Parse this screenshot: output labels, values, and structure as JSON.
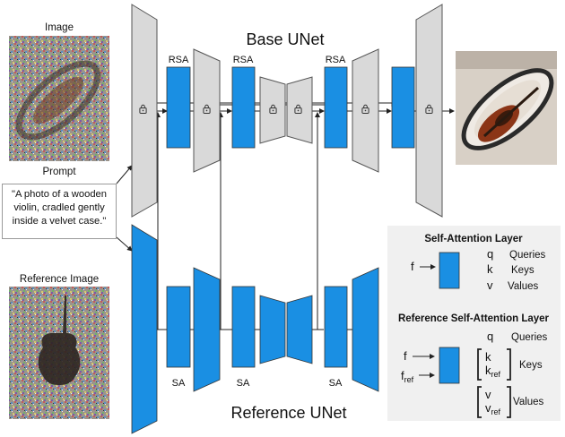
{
  "labels": {
    "image": "Image",
    "prompt": "Prompt",
    "reference_image": "Reference Image",
    "base_unet": "Base UNet",
    "reference_unet": "Reference UNet",
    "rsa": "RSA",
    "sa": "SA"
  },
  "prompt_text": "\"A photo of a wooden violin, cradled gently inside a velvet case.\"",
  "legend": {
    "sa_title": "Self-Attention Layer",
    "ref_title": "Reference Self-Attention Layer",
    "f": "f",
    "f_ref_base": "f",
    "f_ref_sub": "ref",
    "q": "q",
    "k": "k",
    "v": "v",
    "k_ref_base": "k",
    "v_ref_base": "v",
    "ref_sub": "ref",
    "queries": "Queries",
    "keys": "Keys",
    "values": "Values"
  },
  "colors": {
    "blue": "#1a8fe3",
    "gray": "#d9d9d9",
    "stroke": "#555555",
    "legend_bg": "#f0f0f0"
  },
  "icons": [
    "lock-icon",
    "arrow-icon"
  ]
}
